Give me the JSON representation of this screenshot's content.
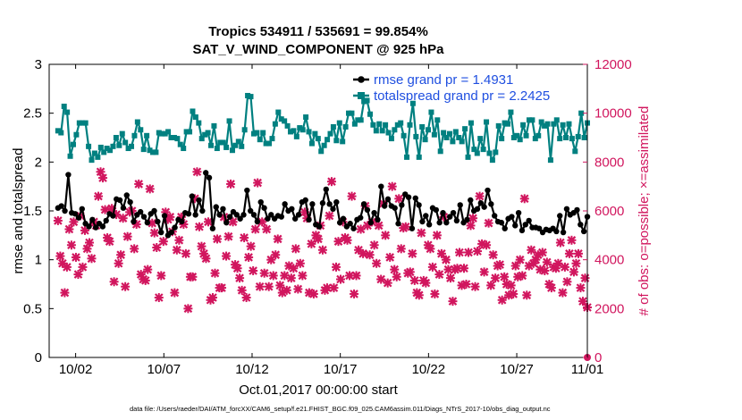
{
  "chart_data": {
    "type": "line",
    "title": "Tropics 534911 / 535691 = 99.854%",
    "subtitle": "SAT_V_WIND_COMPONENT @ 925 hPa",
    "xlabel": "Oct.01,2017 00:00:00 start",
    "ylabel": "rmse and totalspread",
    "ylabel_right": "# of obs: o=possible; ×=assimilated",
    "footnote": "data file: /Users/raeder/DAI/ATM_forcXX/CAM6_setup/f.e21.FHIST_BGC.f09_025.CAM6assim.011/Diags_NTrS_2017-10/obs_diag_output.nc",
    "x_range": [
      0.5,
      31.0
    ],
    "ylim": [
      0,
      3
    ],
    "ylim_right": [
      0,
      12000
    ],
    "x_ticks": [
      {
        "value": 2,
        "label": "10/02"
      },
      {
        "value": 7,
        "label": "10/07"
      },
      {
        "value": 12,
        "label": "10/12"
      },
      {
        "value": 17,
        "label": "10/17"
      },
      {
        "value": 22,
        "label": "10/22"
      },
      {
        "value": 27,
        "label": "10/27"
      },
      {
        "value": 32,
        "label": "11/01"
      }
    ],
    "y_ticks": [
      "0",
      "0.5",
      "1",
      "1.5",
      "2",
      "2.5",
      "3"
    ],
    "y_ticks_right": [
      "0",
      "2000",
      "4000",
      "6000",
      "8000",
      "10000",
      "12000"
    ],
    "legend_position": "top-right",
    "colors": {
      "rmse": "#000000",
      "spread": "#008080",
      "obs": "#d1165e",
      "legend_text": "#1f4fe0"
    },
    "series": [
      {
        "name": "rmse grand pr = 1.4931",
        "key": "rmse",
        "axis": "left",
        "values": [
          1.53,
          1.55,
          1.5,
          1.87,
          1.48,
          1.47,
          1.43,
          1.52,
          1.37,
          1.34,
          1.41,
          1.33,
          1.37,
          1.34,
          1.4,
          1.47,
          1.45,
          1.62,
          1.61,
          1.53,
          1.66,
          1.59,
          1.39,
          1.46,
          1.49,
          1.44,
          1.38,
          1.47,
          1.5,
          1.39,
          1.28,
          1.45,
          1.25,
          1.28,
          1.33,
          1.41,
          1.39,
          1.48,
          1.47,
          1.65,
          1.46,
          1.61,
          1.5,
          1.89,
          1.84,
          1.32,
          1.54,
          1.46,
          1.52,
          1.38,
          1.44,
          1.49,
          1.46,
          1.42,
          1.46,
          1.71,
          1.5,
          1.46,
          1.39,
          1.59,
          1.53,
          1.42,
          1.46,
          1.42,
          1.45,
          1.44,
          1.57,
          1.5,
          1.52,
          1.42,
          1.46,
          1.59,
          1.61,
          1.41,
          1.57,
          1.36,
          1.34,
          1.58,
          1.72,
          1.57,
          1.52,
          1.59,
          1.38,
          1.42,
          1.34,
          1.37,
          1.32,
          1.41,
          1.43,
          1.57,
          1.51,
          1.38,
          1.48,
          1.41,
          1.75,
          1.55,
          1.62,
          1.55,
          1.53,
          1.37,
          1.56,
          1.67,
          1.64,
          1.32,
          1.63,
          1.56,
          1.39,
          1.45,
          1.36,
          1.53,
          1.51,
          1.38,
          1.48,
          1.38,
          1.44,
          1.48,
          1.4,
          1.56,
          1.38,
          1.41,
          1.61,
          1.5,
          1.52,
          1.58,
          1.54,
          1.71,
          1.57,
          1.45,
          1.39,
          1.38,
          1.32,
          1.42,
          1.44,
          1.35,
          1.48,
          1.3,
          1.36,
          1.4,
          1.33,
          1.33,
          1.32,
          1.28,
          1.31,
          1.3,
          1.32,
          1.29,
          1.45,
          1.28,
          1.52,
          1.46,
          1.48,
          1.51,
          1.36,
          1.29,
          1.44
        ]
      },
      {
        "name": "totalspread grand pr = 2.2425",
        "key": "spread",
        "axis": "left",
        "values": [
          2.32,
          2.3,
          2.57,
          2.51,
          2.06,
          2.18,
          2.28,
          2.4,
          2.4,
          2.4,
          2.16,
          2.02,
          2.09,
          2.05,
          2.15,
          2.1,
          2.14,
          2.12,
          2.16,
          2.25,
          2.17,
          2.29,
          2.2,
          2.14,
          2.16,
          2.27,
          2.41,
          2.33,
          2.13,
          2.27,
          2.12,
          2.1,
          2.1,
          2.3,
          2.29,
          2.29,
          2.31,
          2.25,
          2.25,
          2.24,
          2.18,
          2.14,
          2.31,
          2.31,
          2.52,
          2.46,
          2.4,
          2.24,
          2.28,
          2.3,
          2.17,
          2.37,
          2.14,
          2.2,
          2.2,
          2.15,
          2.42,
          2.12,
          2.17,
          2.21,
          2.16,
          2.33,
          2.68,
          2.67,
          2.29,
          2.3,
          2.23,
          2.3,
          2.19,
          2.19,
          2.24,
          2.39,
          2.51,
          2.44,
          2.42,
          2.37,
          2.31,
          2.32,
          2.26,
          2.35,
          2.33,
          2.46,
          2.31,
          2.19,
          2.29,
          2.24,
          2.11,
          2.17,
          2.23,
          2.29,
          2.36,
          2.22,
          2.4,
          2.21,
          2.36,
          2.5,
          2.5,
          2.39,
          2.43,
          2.43,
          2.62,
          2.63,
          2.49,
          2.38,
          2.32,
          2.39,
          2.32,
          2.38,
          2.3,
          2.24,
          2.33,
          2.38,
          2.4,
          2.27,
          2.05,
          2.38,
          2.6,
          2.26,
          2.05,
          2.36,
          2.23,
          2.33,
          2.51,
          2.28,
          2.43,
          2.11,
          2.3,
          2.25,
          2.29,
          2.21,
          2.31,
          2.25,
          2.21,
          2.34,
          2.05,
          2.4,
          2.13,
          2.09,
          2.24,
          2.13,
          2.41,
          2.09,
          2.02,
          2.1,
          2.37,
          2.24,
          2.4,
          2.39,
          2.51,
          2.25,
          2.27,
          2.23,
          2.38,
          2.27,
          2.43,
          2.43,
          2.24,
          2.27,
          2.41,
          2.37,
          2.39,
          2.02,
          2.39,
          2.43,
          2.24,
          2.38,
          2.25,
          2.39,
          2.24,
          2.11,
          2.26,
          2.5,
          2.25,
          2.4
        ]
      },
      {
        "name": "obs assimilated",
        "key": "obs",
        "axis": "right",
        "marker": "x-cross",
        "values": [
          5600,
          4150,
          3850,
          2650,
          3700,
          5250,
          4600,
          5550,
          4100,
          3400,
          5800,
          3700,
          5200,
          4450,
          4700,
          4050,
          5550,
          5400,
          6600,
          7600,
          7350,
          6050,
          4900,
          4750,
          6100,
          3100,
          5850,
          3850,
          4200,
          5700,
          2900,
          4950,
          5950,
          6000,
          4450,
          5450,
          7100,
          3400,
          3200,
          3150,
          3600,
          6900,
          5500,
          5100,
          4500,
          2450,
          3350,
          4750,
          5950,
          5650,
          5750,
          5150,
          2650,
          4400,
          4800,
          5750,
          5450,
          4250,
          2000,
          3300,
          3300,
          6500,
          7600,
          5350,
          4550,
          4250,
          4050,
          5550,
          2350,
          2450,
          3450,
          4850,
          2850,
          2850,
          5750,
          4150,
          4950,
          7100,
          5550,
          3800,
          3650,
          3250,
          2750,
          4900,
          2450,
          4100,
          4550,
          3550,
          5250,
          7150,
          2900,
          5550,
          3450,
          5250,
          2900,
          4000,
          3350,
          4200,
          4850,
          2950,
          2650,
          3350,
          2750,
          3750,
          3250,
          3650,
          4450,
          2800,
          3850,
          3350,
          5950,
          5700,
          2650,
          4650,
          2600,
          5000,
          4850,
          5400,
          4400,
          2750,
          2850,
          5800,
          7200,
          2850,
          3700,
          4750,
          3200,
          5550,
          4900,
          4800,
          3350,
          6600,
          2600,
          3350,
          4400,
          5250,
          4250,
          6200,
          5400,
          4200,
          5550,
          4600,
          3850,
          5400,
          3200,
          6300,
          5000,
          3050,
          4100,
          7000,
          3600,
          3300,
          6500,
          4450,
          5300,
          5350,
          3450,
          3500,
          4250,
          3150,
          2650,
          2550,
          5100,
          3150,
          3050,
          4600,
          4450,
          3700,
          2600,
          5000,
          3400,
          4250,
          5750,
          4000,
          3600,
          3250,
          2300,
          3600,
          3650,
          4300,
          2950,
          3650,
          3000,
          4300,
          5400,
          5700,
          2900,
          4350,
          6600,
          4650,
          3500,
          4600,
          5500,
          2950,
          4200,
          3250,
          3750,
          3800,
          2350,
          3300,
          3000,
          2550,
          2950,
          2600,
          3750,
          3300,
          4000,
          3350,
          6500,
          2550,
          3750,
          4400,
          3850,
          4000,
          4200,
          3600,
          4300,
          3550,
          3900,
          3000,
          2850,
          3700,
          3650,
          3850,
          4700,
          2650,
          3700,
          3100,
          4250,
          4800,
          3500,
          3850,
          4250,
          2850,
          2300,
          3250,
          2050
        ]
      }
    ]
  }
}
